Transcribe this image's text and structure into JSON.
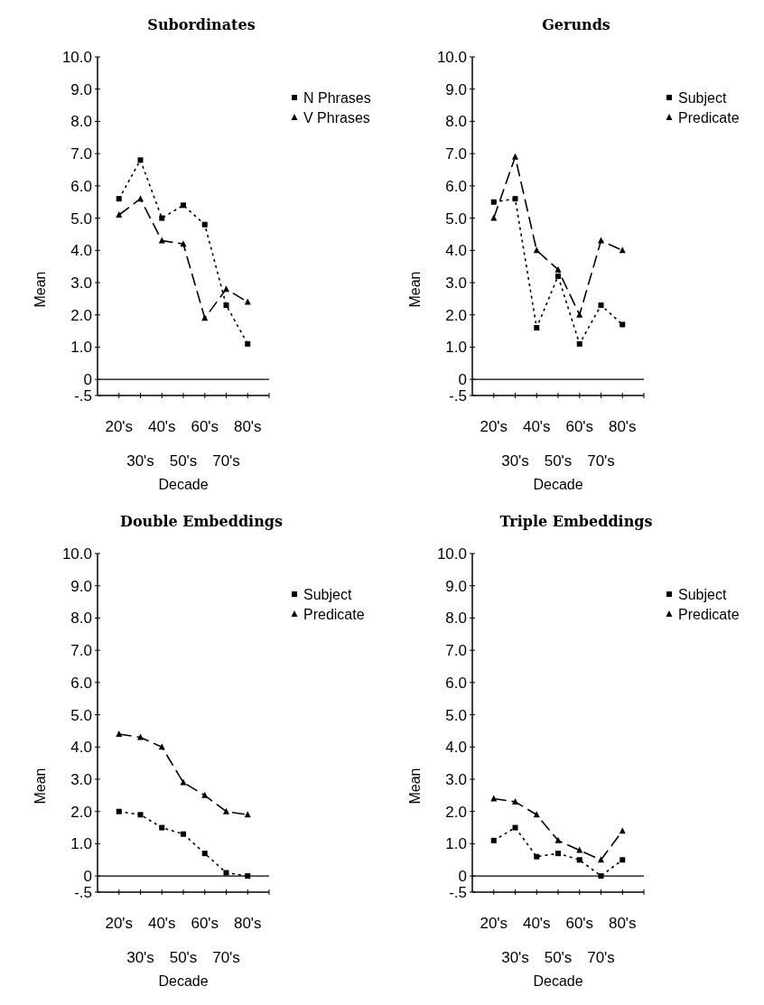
{
  "chart_data": [
    {
      "type": "line",
      "title": "Subordinates",
      "xlabel": "Decade",
      "ylabel": "Mean",
      "categories": [
        "20's",
        "30's",
        "40's",
        "50's",
        "60's",
        "70's",
        "80's"
      ],
      "ylim": [
        -0.5,
        10
      ],
      "yticks": [
        {
          "value": -0.5,
          "label": "-.5"
        },
        {
          "value": 0,
          "label": "0"
        },
        {
          "value": 1,
          "label": "1.0"
        },
        {
          "value": 2,
          "label": "2.0"
        },
        {
          "value": 3,
          "label": "3.0"
        },
        {
          "value": 4,
          "label": "4.0"
        },
        {
          "value": 5,
          "label": "5.0"
        },
        {
          "value": 6,
          "label": "6.0"
        },
        {
          "value": 7,
          "label": "7.0"
        },
        {
          "value": 8,
          "label": "8.0"
        },
        {
          "value": 9,
          "label": "9.0"
        },
        {
          "value": 10,
          "label": "10.0"
        }
      ],
      "legend": "top right",
      "ref_lines": [
        {
          "axis": "y",
          "value": 0,
          "color": "#000000"
        }
      ],
      "series": [
        {
          "name": "N Phrases",
          "color": "#000000",
          "marker": "square",
          "line_style": "dotted",
          "values": [
            5.6,
            6.8,
            5.0,
            5.4,
            4.8,
            2.3,
            1.1
          ]
        },
        {
          "name": "V Phrases",
          "color": "#000000",
          "marker": "triangle",
          "line_style": "dashed",
          "values": [
            5.1,
            5.6,
            4.3,
            4.2,
            1.9,
            2.8,
            2.4
          ]
        }
      ]
    },
    {
      "type": "line",
      "title": "Gerunds",
      "xlabel": "Decade",
      "ylabel": "Mean",
      "categories": [
        "20's",
        "30's",
        "40's",
        "50's",
        "60's",
        "70's",
        "80's"
      ],
      "ylim": [
        -0.5,
        10
      ],
      "yticks": [
        {
          "value": -0.5,
          "label": "-.5"
        },
        {
          "value": 0,
          "label": "0"
        },
        {
          "value": 1,
          "label": "1.0"
        },
        {
          "value": 2,
          "label": "2.0"
        },
        {
          "value": 3,
          "label": "3.0"
        },
        {
          "value": 4,
          "label": "4.0"
        },
        {
          "value": 5,
          "label": "5.0"
        },
        {
          "value": 6,
          "label": "6.0"
        },
        {
          "value": 7,
          "label": "7.0"
        },
        {
          "value": 8,
          "label": "8.0"
        },
        {
          "value": 9,
          "label": "9.0"
        },
        {
          "value": 10,
          "label": "10.0"
        }
      ],
      "legend": "top right",
      "ref_lines": [
        {
          "axis": "y",
          "value": 0,
          "color": "#000000"
        }
      ],
      "series": [
        {
          "name": "Subject",
          "color": "#000000",
          "marker": "square",
          "line_style": "dotted",
          "values": [
            5.5,
            5.6,
            1.6,
            3.2,
            1.1,
            2.3,
            1.7
          ]
        },
        {
          "name": "Predicate",
          "color": "#000000",
          "marker": "triangle",
          "line_style": "dashed",
          "values": [
            5.0,
            6.9,
            4.0,
            3.4,
            2.0,
            4.3,
            4.0
          ]
        }
      ]
    },
    {
      "type": "line",
      "title": "Double Embeddings",
      "xlabel": "Decade",
      "ylabel": "Mean",
      "categories": [
        "20's",
        "30's",
        "40's",
        "50's",
        "60's",
        "70's",
        "80's"
      ],
      "ylim": [
        -0.5,
        10
      ],
      "yticks": [
        {
          "value": -0.5,
          "label": "-.5"
        },
        {
          "value": 0,
          "label": "0"
        },
        {
          "value": 1,
          "label": "1.0"
        },
        {
          "value": 2,
          "label": "2.0"
        },
        {
          "value": 3,
          "label": "3.0"
        },
        {
          "value": 4,
          "label": "4.0"
        },
        {
          "value": 5,
          "label": "5.0"
        },
        {
          "value": 6,
          "label": "6.0"
        },
        {
          "value": 7,
          "label": "7.0"
        },
        {
          "value": 8,
          "label": "8.0"
        },
        {
          "value": 9,
          "label": "9.0"
        },
        {
          "value": 10,
          "label": "10.0"
        }
      ],
      "legend": "top right",
      "ref_lines": [
        {
          "axis": "y",
          "value": 0,
          "color": "#000000"
        }
      ],
      "series": [
        {
          "name": "Subject",
          "color": "#000000",
          "marker": "square",
          "line_style": "dotted",
          "values": [
            2.0,
            1.9,
            1.5,
            1.3,
            0.7,
            0.1,
            0.0
          ]
        },
        {
          "name": "Predicate",
          "color": "#000000",
          "marker": "triangle",
          "line_style": "dashed",
          "values": [
            4.4,
            4.3,
            4.0,
            2.9,
            2.5,
            2.0,
            1.9
          ]
        }
      ]
    },
    {
      "type": "line",
      "title": "Triple Embeddings",
      "xlabel": "Decade",
      "ylabel": "Mean",
      "categories": [
        "20's",
        "30's",
        "40's",
        "50's",
        "60's",
        "70's",
        "80's"
      ],
      "ylim": [
        -0.5,
        10
      ],
      "yticks": [
        {
          "value": -0.5,
          "label": "-.5"
        },
        {
          "value": 0,
          "label": "0"
        },
        {
          "value": 1,
          "label": "1.0"
        },
        {
          "value": 2,
          "label": "2.0"
        },
        {
          "value": 3,
          "label": "3.0"
        },
        {
          "value": 4,
          "label": "4.0"
        },
        {
          "value": 5,
          "label": "5.0"
        },
        {
          "value": 6,
          "label": "6.0"
        },
        {
          "value": 7,
          "label": "7.0"
        },
        {
          "value": 8,
          "label": "8.0"
        },
        {
          "value": 9,
          "label": "9.0"
        },
        {
          "value": 10,
          "label": "10.0"
        }
      ],
      "legend": "top right",
      "ref_lines": [
        {
          "axis": "y",
          "value": 0,
          "color": "#000000"
        }
      ],
      "series": [
        {
          "name": "Subject",
          "color": "#000000",
          "marker": "square",
          "line_style": "dotted",
          "values": [
            1.1,
            1.5,
            0.6,
            0.7,
            0.5,
            0.0,
            0.5
          ]
        },
        {
          "name": "Predicate",
          "color": "#000000",
          "marker": "triangle",
          "line_style": "dashed",
          "values": [
            2.4,
            2.3,
            1.9,
            1.1,
            0.8,
            0.5,
            1.4
          ]
        }
      ]
    }
  ]
}
